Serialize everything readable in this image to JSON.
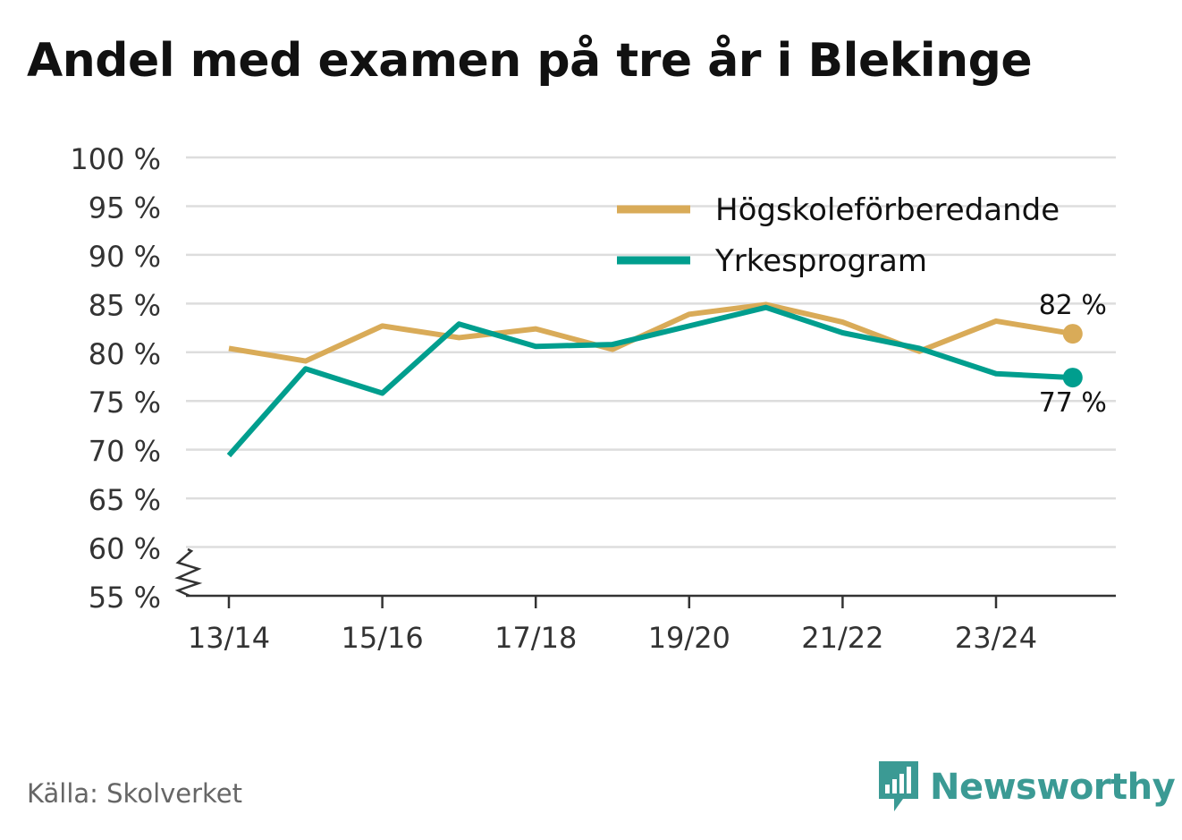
{
  "title": "Andel med examen på tre år i Blekinge",
  "source": "Källa: Skolverket",
  "brand": {
    "name": "Newsworthy",
    "color": "#3b9a94"
  },
  "chart_data": {
    "type": "line",
    "title": "Andel med examen på tre år i Blekinge",
    "xlabel": "",
    "ylabel": "",
    "x": [
      "13/14",
      "14/15",
      "15/16",
      "16/17",
      "17/18",
      "18/19",
      "19/20",
      "20/21",
      "21/22",
      "22/23",
      "23/24",
      "24/25"
    ],
    "x_tick_labels": [
      "13/14",
      "15/16",
      "17/18",
      "19/20",
      "21/22",
      "23/24"
    ],
    "ylim": [
      55,
      100
    ],
    "y_ticks": [
      55,
      60,
      65,
      70,
      75,
      80,
      85,
      90,
      95,
      100
    ],
    "y_tick_labels": [
      "55 %",
      "60 %",
      "65 %",
      "70 %",
      "75 %",
      "80 %",
      "85 %",
      "90 %",
      "95 %",
      "100 %"
    ],
    "y_axis_break": true,
    "grid": true,
    "legend_position": "top-right",
    "series": [
      {
        "name": "Högskoleförberedande",
        "color": "#d9ab58",
        "values": [
          80.4,
          79.1,
          82.7,
          81.5,
          82.4,
          80.3,
          83.9,
          84.9,
          83.1,
          80.1,
          83.2,
          81.9
        ],
        "end_label": "82 %",
        "end_label_position": "above"
      },
      {
        "name": "Yrkesprogram",
        "color": "#009e8e",
        "values": [
          69.4,
          78.3,
          75.8,
          82.9,
          80.6,
          80.8,
          82.7,
          84.6,
          82.0,
          80.4,
          77.8,
          77.4
        ],
        "end_label": "77 %",
        "end_label_position": "below"
      }
    ]
  }
}
